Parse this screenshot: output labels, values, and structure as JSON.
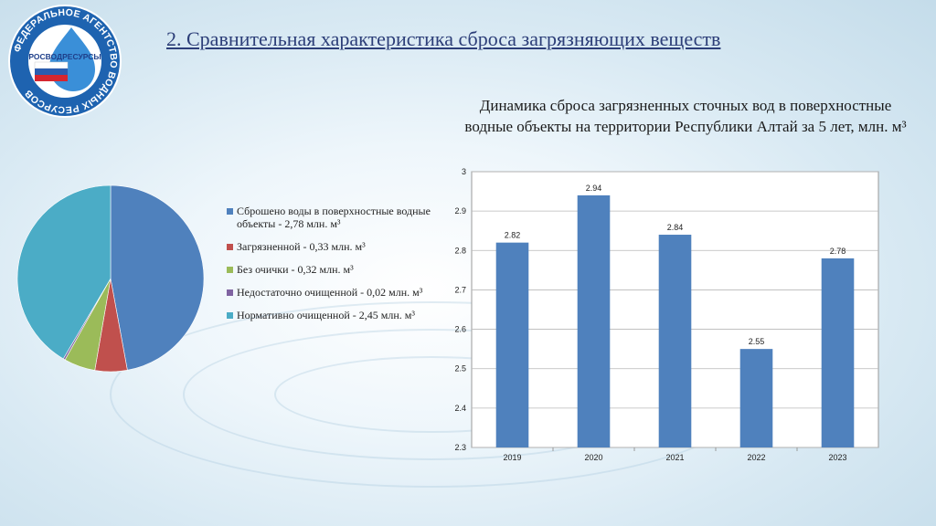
{
  "page": {
    "title": "2. Сравнительная характеристика сброса загрязняющих веществ",
    "logo": {
      "ring_text": "ФЕДЕРАЛЬНОЕ АГЕНТСТВО ВОДНЫХ РЕСУРСОВ",
      "brand_text": "РОСВОДРЕСУРСЫ",
      "icon": "water-drop-flag-logo"
    }
  },
  "colors": {
    "title": "#2c3e78",
    "bar": "#4f81bd",
    "slice_blue": "#4f81bd",
    "slice_red": "#c0504d",
    "slice_green": "#9bbb59",
    "slice_purple": "#8064a2",
    "slice_cyan": "#4bacc6"
  },
  "chart_data": [
    {
      "type": "pie",
      "legend_position": "right",
      "slices": [
        {
          "label": "Сброшено воды в поверхностные водные объекты - 2,78 млн. м³",
          "value": 2.78,
          "color": "#4f81bd"
        },
        {
          "label": "Загрязненной - 0,33 млн. м³",
          "value": 0.33,
          "color": "#c0504d"
        },
        {
          "label": "Без очички - 0,32 млн. м³",
          "value": 0.32,
          "color": "#9bbb59"
        },
        {
          "label": "Недостаточно очищенной - 0,02 млн. м³",
          "value": 0.02,
          "color": "#8064a2"
        },
        {
          "label": "Нормативно очищенной - 2,45 млн. м³",
          "value": 2.45,
          "color": "#4bacc6"
        }
      ]
    },
    {
      "type": "bar",
      "title": "Динамика сброса загрязненных сточных вод в поверхностные водные объекты на территории Республики Алтай за 5 лет, млн. м³",
      "categories": [
        "2019",
        "2020",
        "2021",
        "2022",
        "2023"
      ],
      "values": [
        2.82,
        2.94,
        2.84,
        2.55,
        2.78
      ],
      "value_labels": [
        "2.82",
        "2.94",
        "2.84",
        "2.55",
        "2.78"
      ],
      "ylim": [
        2.3,
        3
      ],
      "yticks": [
        "2.3",
        "2.4",
        "2.5",
        "2.6",
        "2.7",
        "2.8",
        "2.9",
        "3"
      ],
      "grid": true,
      "legend": false
    }
  ]
}
